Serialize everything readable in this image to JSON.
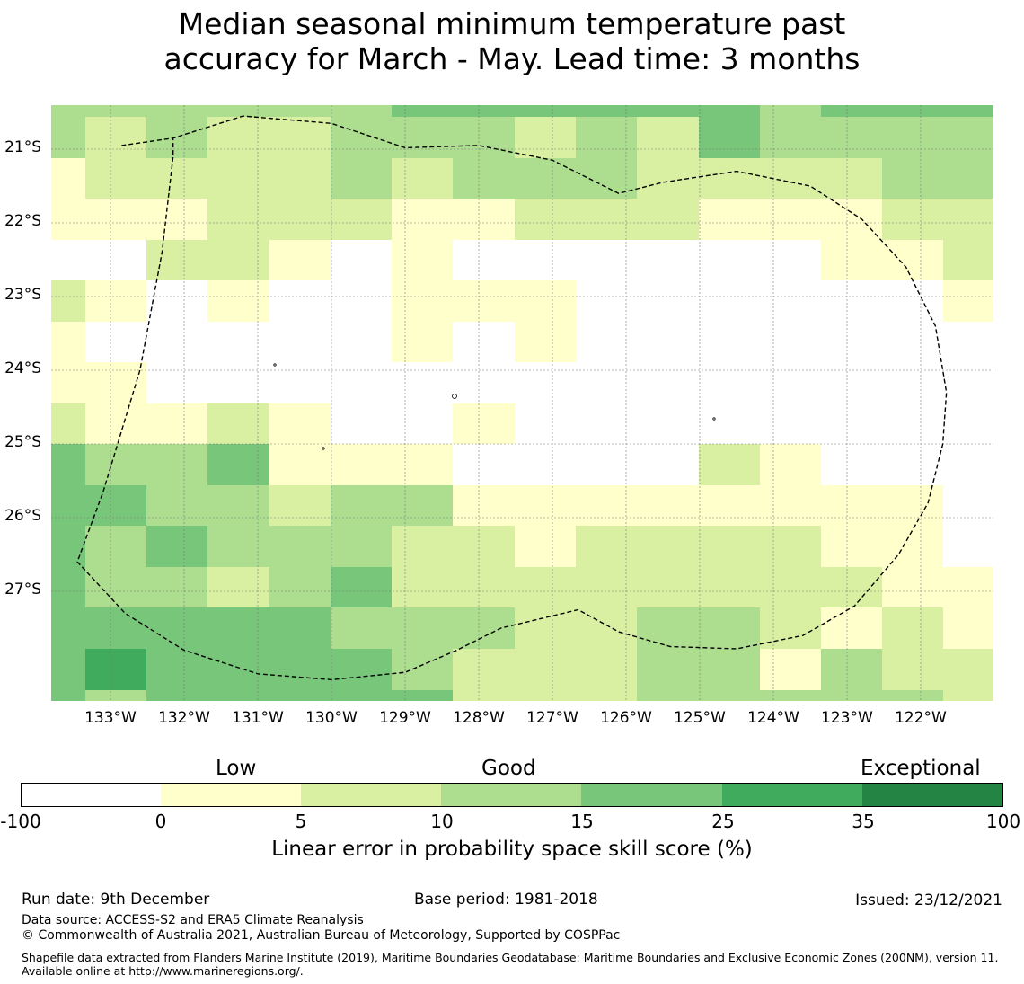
{
  "title": {
    "line1": "Median seasonal minimum temperature past",
    "line2": "accuracy for March - May. Lead time: 3 months"
  },
  "map": {
    "lat_labels": [
      "21°S",
      "22°S",
      "23°S",
      "24°S",
      "25°S",
      "26°S",
      "27°S"
    ],
    "lon_labels": [
      "133°W",
      "132°W",
      "131°W",
      "130°W",
      "129°W",
      "128°W",
      "127°W",
      "126°W",
      "125°W",
      "124°W",
      "123°W",
      "122°W"
    ],
    "grid_classes": [
      [
        2,
        2,
        2,
        2,
        2,
        2,
        3,
        3,
        3,
        3,
        3,
        3,
        2,
        3,
        3,
        3
      ],
      [
        2,
        1,
        2,
        1,
        1,
        2,
        2,
        2,
        1,
        2,
        1,
        3,
        2,
        2,
        2,
        2
      ],
      [
        0,
        1,
        1,
        1,
        1,
        2,
        1,
        2,
        2,
        2,
        1,
        1,
        1,
        1,
        2,
        2
      ],
      [
        0,
        0,
        0,
        1,
        1,
        1,
        0,
        0,
        1,
        1,
        1,
        0,
        0,
        0,
        1,
        1
      ],
      [
        -1,
        -1,
        1,
        1,
        0,
        -1,
        0,
        -1,
        -1,
        -1,
        -1,
        -1,
        -1,
        0,
        0,
        1
      ],
      [
        1,
        0,
        -1,
        0,
        -1,
        -1,
        0,
        0,
        0,
        -1,
        -1,
        -1,
        -1,
        -1,
        -1,
        0
      ],
      [
        0,
        -1,
        -1,
        -1,
        -1,
        -1,
        0,
        -1,
        0,
        -1,
        -1,
        -1,
        -1,
        -1,
        -1,
        -1
      ],
      [
        0,
        0,
        -1,
        -1,
        -1,
        -1,
        -1,
        -1,
        -1,
        -1,
        -1,
        -1,
        -1,
        -1,
        -1,
        -1
      ],
      [
        1,
        0,
        0,
        1,
        0,
        -1,
        -1,
        0,
        -1,
        -1,
        -1,
        -1,
        -1,
        -1,
        -1,
        -1
      ],
      [
        3,
        2,
        2,
        3,
        0,
        0,
        0,
        -1,
        -1,
        -1,
        -1,
        1,
        0,
        -1,
        -1,
        -1
      ],
      [
        3,
        3,
        2,
        2,
        1,
        2,
        2,
        0,
        0,
        0,
        0,
        0,
        0,
        0,
        0,
        -1
      ],
      [
        3,
        2,
        3,
        2,
        2,
        2,
        1,
        1,
        0,
        1,
        1,
        1,
        1,
        0,
        0,
        -1
      ],
      [
        3,
        2,
        2,
        1,
        2,
        3,
        1,
        1,
        1,
        1,
        1,
        1,
        1,
        1,
        0,
        0
      ],
      [
        3,
        3,
        3,
        3,
        3,
        2,
        2,
        2,
        1,
        1,
        2,
        2,
        1,
        0,
        1,
        0
      ],
      [
        3,
        4,
        3,
        3,
        3,
        3,
        2,
        1,
        1,
        1,
        2,
        2,
        0,
        2,
        1,
        1
      ],
      [
        3,
        2,
        3,
        3,
        3,
        3,
        3,
        1,
        1,
        1,
        2,
        2,
        2,
        2,
        2,
        1
      ]
    ],
    "boundary_lonlat": [
      [
        -132.85,
        -20.95
      ],
      [
        -132.15,
        -20.85
      ],
      [
        -131.2,
        -20.55
      ],
      [
        -130.0,
        -20.65
      ],
      [
        -129.0,
        -20.98
      ],
      [
        -128.0,
        -20.95
      ],
      [
        -127.0,
        -21.15
      ],
      [
        -126.1,
        -21.6
      ],
      [
        -125.5,
        -21.45
      ],
      [
        -124.5,
        -21.3
      ],
      [
        -123.5,
        -21.5
      ],
      [
        -122.8,
        -21.95
      ],
      [
        -122.2,
        -22.6
      ],
      [
        -121.8,
        -23.4
      ],
      [
        -121.65,
        -24.3
      ],
      [
        -121.7,
        -25.0
      ],
      [
        -121.9,
        -25.8
      ],
      [
        -122.3,
        -26.5
      ],
      [
        -122.9,
        -27.2
      ],
      [
        -123.6,
        -27.6
      ],
      [
        -124.5,
        -27.78
      ],
      [
        -125.4,
        -27.75
      ],
      [
        -126.1,
        -27.55
      ],
      [
        -126.65,
        -27.25
      ],
      [
        -127.7,
        -27.5
      ],
      [
        -128.3,
        -27.8
      ],
      [
        -129.0,
        -28.1
      ],
      [
        -130.0,
        -28.2
      ],
      [
        -131.0,
        -28.12
      ],
      [
        -132.0,
        -27.8
      ],
      [
        -132.8,
        -27.3
      ],
      [
        -133.45,
        -26.6
      ],
      [
        -133.1,
        -25.65
      ],
      [
        -132.6,
        -24.0
      ],
      [
        -132.3,
        -22.4
      ],
      [
        -132.15,
        -21.1
      ],
      [
        -132.15,
        -20.85
      ]
    ]
  },
  "colorbar": {
    "categories": [
      "Low",
      "Good",
      "Exceptional"
    ],
    "ticks": [
      "-100",
      "0",
      "5",
      "10",
      "15",
      "25",
      "35",
      "100"
    ],
    "colors": [
      "#ffffff",
      "#ffffcc",
      "#d9f0a3",
      "#addd8e",
      "#78c679",
      "#41ab5d",
      "#238443"
    ],
    "label": "Linear error in probability space skill score (%)"
  },
  "footer": {
    "run_date": "Run date: 9th December",
    "base_period": "Base period: 1981-2018",
    "issued": "Issued: 23/12/2021",
    "data_source": "Data source: ACCESS-S2 and ERA5 Climate Reanalysis",
    "copyright": "© Commonwealth of Australia 2021, Australian Bureau of Meteorology, Supported by COSPPac",
    "shapefile": "Shapefile data extracted from Flanders Marine Institute (2019), Maritime Boundaries Geodatabase: Maritime Boundaries and Exclusive Economic Zones (200NM), version 11. Available online at http://www.marineregions.org/."
  }
}
